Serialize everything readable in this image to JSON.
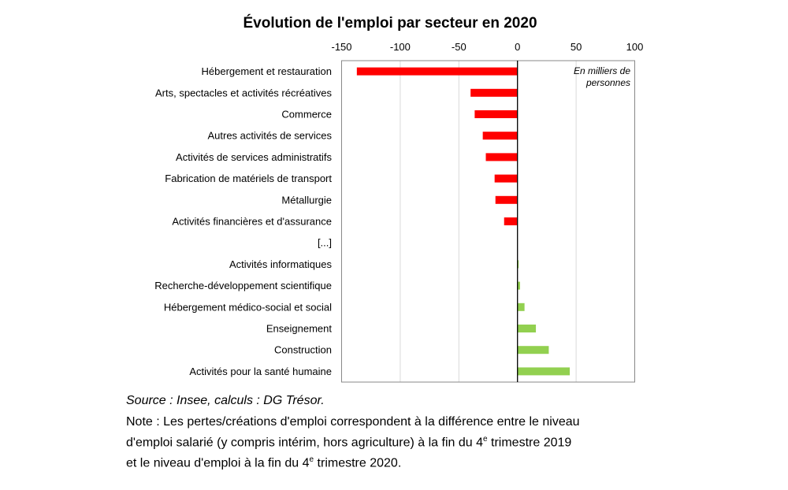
{
  "chart_data": {
    "type": "bar",
    "orientation": "horizontal",
    "title": "Évolution de l'emploi par secteur en 2020",
    "unit_label": [
      "En milliers de",
      "personnes"
    ],
    "xlim": [
      -150,
      100
    ],
    "xticks": [
      -150,
      -100,
      -50,
      0,
      50,
      100
    ],
    "grid": true,
    "categories": [
      "Hébergement et restauration",
      "Arts, spectacles et activités récréatives",
      "Commerce",
      "Autres activités de services",
      "Activités de services administratifs",
      "Fabrication de matériels de transport",
      "Métallurgie",
      "Activités financières et d'assurance",
      "[...]",
      "Activités informatiques",
      "Recherche-développement scientifique",
      "Hébergement médico-social et social",
      "Enseignement",
      "Construction",
      "Activités pour la santé humaine"
    ],
    "values": [
      -137,
      -40,
      -36.5,
      -29.6,
      -27,
      -19.5,
      -18.8,
      -11.4,
      null,
      1,
      2.2,
      6,
      15.7,
      26.7,
      44.6
    ],
    "colors": {
      "negative": "#ff0000",
      "positive": "#92d050"
    }
  },
  "source": "Source : Insee, calculs : DG Trésor.",
  "note": {
    "line1": "Note : Les pertes/créations d'emploi correspondent à la différence entre le niveau",
    "line2a": "d'emploi salarié (y compris intérim, hors agriculture) à la fin du 4",
    "sup": "e",
    "line2b": " trimestre 2019",
    "line3a": "et le niveau d'emploi à la fin du 4",
    "line3b": " trimestre 2020."
  }
}
